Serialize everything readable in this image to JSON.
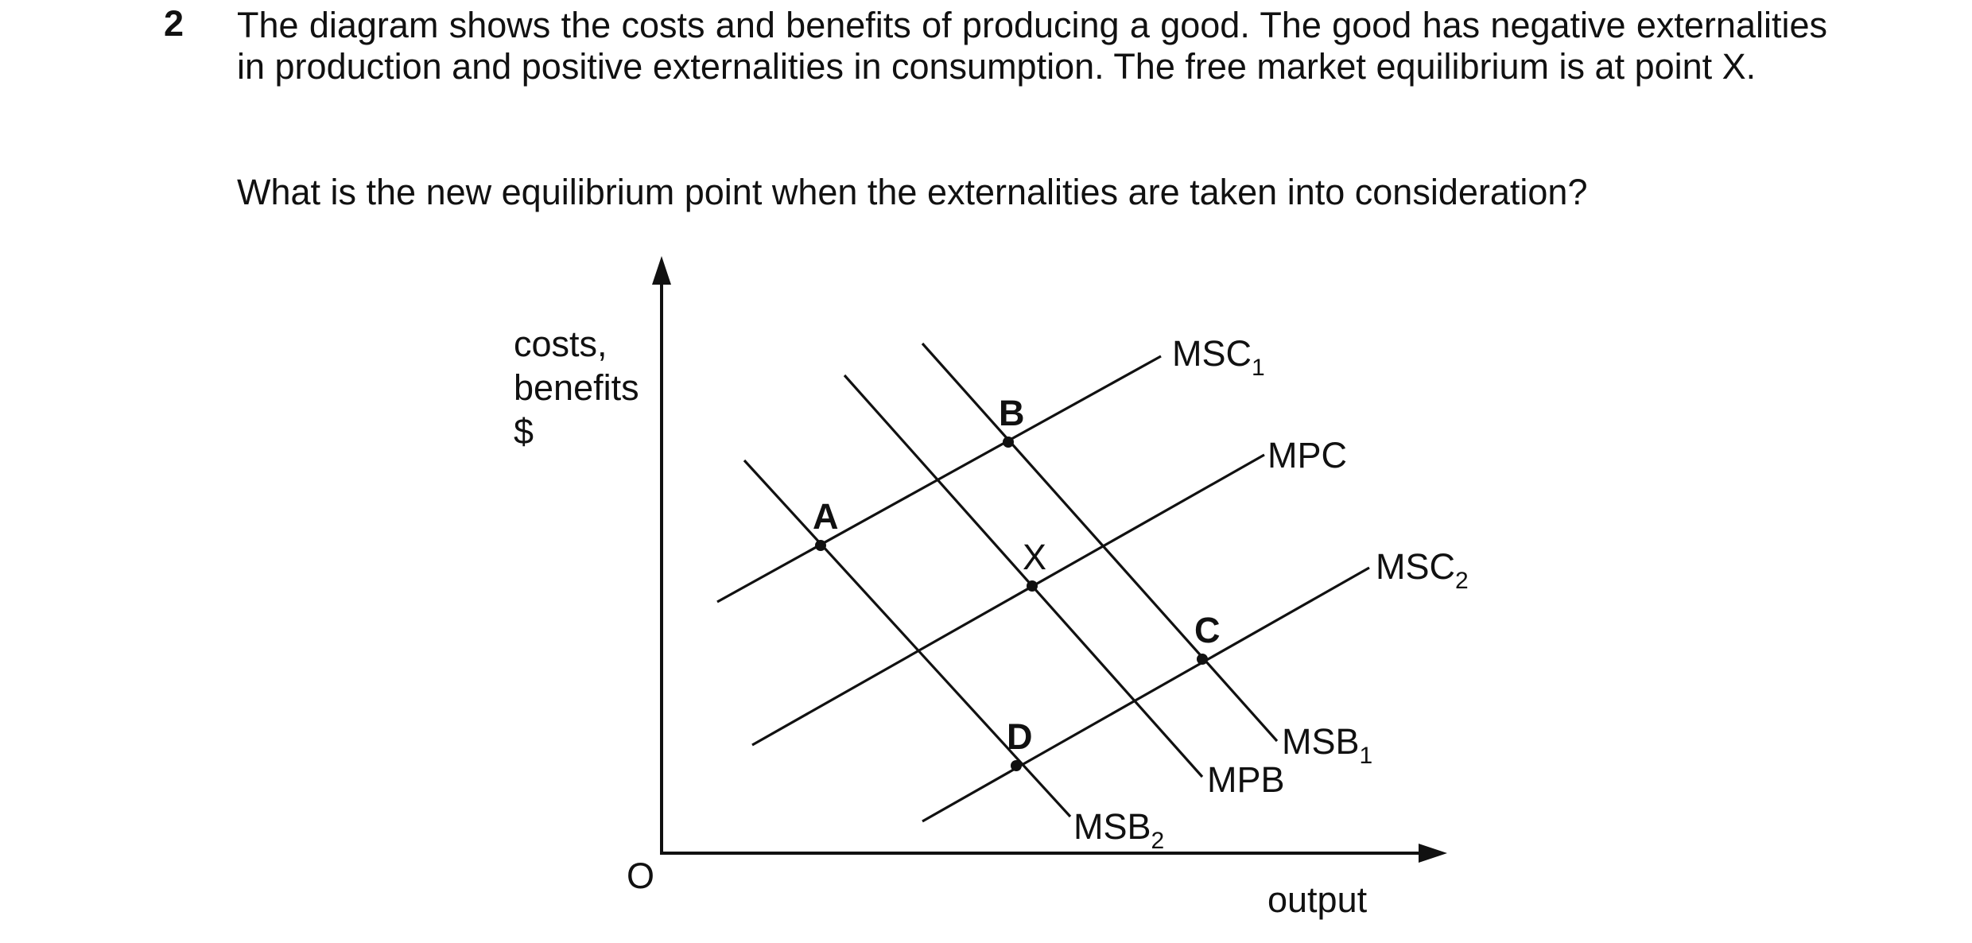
{
  "question": {
    "number": "2",
    "text": "The diagram shows the costs and benefits of producing a good. The good has negative externalities in production and positive externalities in consumption. The free market equilibrium is at point X.",
    "ask": "What is the new equilibrium point when the externalities are taken into consideration?"
  },
  "diagram": {
    "y_axis_label": [
      "costs,",
      "benefits",
      "$"
    ],
    "x_axis_label": "output",
    "origin_label": "O",
    "curves": {
      "msc1": {
        "base": "MSC",
        "sub": "1"
      },
      "mpc": {
        "base": "MPC",
        "sub": ""
      },
      "msc2": {
        "base": "MSC",
        "sub": "2"
      },
      "msb1": {
        "base": "MSB",
        "sub": "1"
      },
      "mpb": {
        "base": "MPB",
        "sub": ""
      },
      "msb2": {
        "base": "MSB",
        "sub": "2"
      }
    },
    "points": {
      "a": "A",
      "b": "B",
      "c": "C",
      "d": "D",
      "x": "X"
    }
  }
}
